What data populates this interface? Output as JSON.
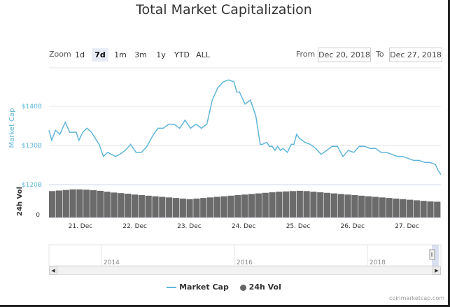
{
  "chart_data": {
    "type": "line",
    "title": "Total Market Capitalization",
    "range_selector": {
      "zoom_label": "Zoom",
      "buttons": [
        "1d",
        "7d",
        "1m",
        "3m",
        "1y",
        "YTD",
        "ALL"
      ],
      "selected": "7d",
      "from_label": "From",
      "from_value": "Dec 20, 2018",
      "to_label": "To",
      "to_value": "Dec 27, 2018"
    },
    "ylabel": "Market Cap",
    "ylabel_vol": "24h Vol",
    "y_ticks": [
      "$120B",
      "$130B",
      "$140B"
    ],
    "ylim": [
      120,
      149
    ],
    "vol_ticks": [
      "0"
    ],
    "x_ticks": [
      "21. Dec",
      "22. Dec",
      "23. Dec",
      "24. Dec",
      "25. Dec",
      "26. Dec",
      "27. Dec"
    ],
    "xlim": [
      20.5,
      27.7
    ],
    "series": [
      {
        "name": "Market Cap",
        "x": [
          20.5,
          20.55,
          20.62,
          20.7,
          20.8,
          20.88,
          20.95,
          21.0,
          21.05,
          21.12,
          21.2,
          21.28,
          21.35,
          21.42,
          21.5,
          21.58,
          21.65,
          21.72,
          21.8,
          21.9,
          22.0,
          22.1,
          22.2,
          22.3,
          22.4,
          22.45,
          22.5,
          22.6,
          22.7,
          22.8,
          22.9,
          23.0,
          23.1,
          23.2,
          23.3,
          23.4,
          23.5,
          23.6,
          23.7,
          23.8,
          23.9,
          23.95,
          24.0,
          24.05,
          24.1,
          24.2,
          24.3,
          24.38,
          24.42,
          24.5,
          24.55,
          24.6,
          24.65,
          24.7,
          24.75,
          24.8,
          24.88,
          24.95,
          25.0,
          25.05,
          25.1,
          25.2,
          25.3,
          25.4,
          25.5,
          25.6,
          25.7,
          25.8,
          25.9,
          26.0,
          26.1,
          26.2,
          26.3,
          26.4,
          26.5,
          26.6,
          26.7,
          26.8,
          26.9,
          27.0,
          27.1,
          27.2,
          27.3,
          27.4,
          27.5,
          27.6,
          27.65,
          27.7
        ],
        "values": [
          133.5,
          131.0,
          133.5,
          132.5,
          135.5,
          133.0,
          133.0,
          133.0,
          131.0,
          133.0,
          134.0,
          133.0,
          131.5,
          130.0,
          127.0,
          128.0,
          127.5,
          127.0,
          127.5,
          128.5,
          130.0,
          128.0,
          128.0,
          129.5,
          132.0,
          133.0,
          134.0,
          134.0,
          135.0,
          135.0,
          134.0,
          136.0,
          134.0,
          135.0,
          134.0,
          135.0,
          141.0,
          144.0,
          145.5,
          146.0,
          145.5,
          143.0,
          143.0,
          141.5,
          140.0,
          141.0,
          137.0,
          130.0,
          130.0,
          130.5,
          129.5,
          129.5,
          128.5,
          129.5,
          128.5,
          129.0,
          128.0,
          130.0,
          130.0,
          132.5,
          131.5,
          130.5,
          130.0,
          129.0,
          127.5,
          128.5,
          129.5,
          129.5,
          127.0,
          128.5,
          128.0,
          129.5,
          129.5,
          129.0,
          129.0,
          128.0,
          128.0,
          127.5,
          127.0,
          127.0,
          126.5,
          126.0,
          126.0,
          125.5,
          125.5,
          125.0,
          123.5,
          122.5
        ],
        "color": "#5fb6da"
      },
      {
        "name": "24h Vol",
        "values": [
          0.92,
          0.94,
          0.96,
          0.98,
          0.98,
          0.97,
          0.95,
          0.93,
          0.9,
          0.87,
          0.85,
          0.83,
          0.8,
          0.78,
          0.76,
          0.74,
          0.72,
          0.7,
          0.68,
          0.66,
          0.64,
          0.66,
          0.68,
          0.7,
          0.72,
          0.74,
          0.76,
          0.78,
          0.8,
          0.82,
          0.84,
          0.86,
          0.88,
          0.9,
          0.91,
          0.92,
          0.93,
          0.92,
          0.9,
          0.88,
          0.86,
          0.84,
          0.82,
          0.8,
          0.78,
          0.76,
          0.74,
          0.72,
          0.7,
          0.68,
          0.66,
          0.64,
          0.62,
          0.6,
          0.58,
          0.56,
          0.55
        ],
        "color": "#666666"
      }
    ],
    "navigator_ticks": [
      "2014",
      "2016",
      "2018"
    ],
    "legend": [
      "Market Cap",
      "24h Vol"
    ],
    "credit": "coinmarketcap.com"
  }
}
